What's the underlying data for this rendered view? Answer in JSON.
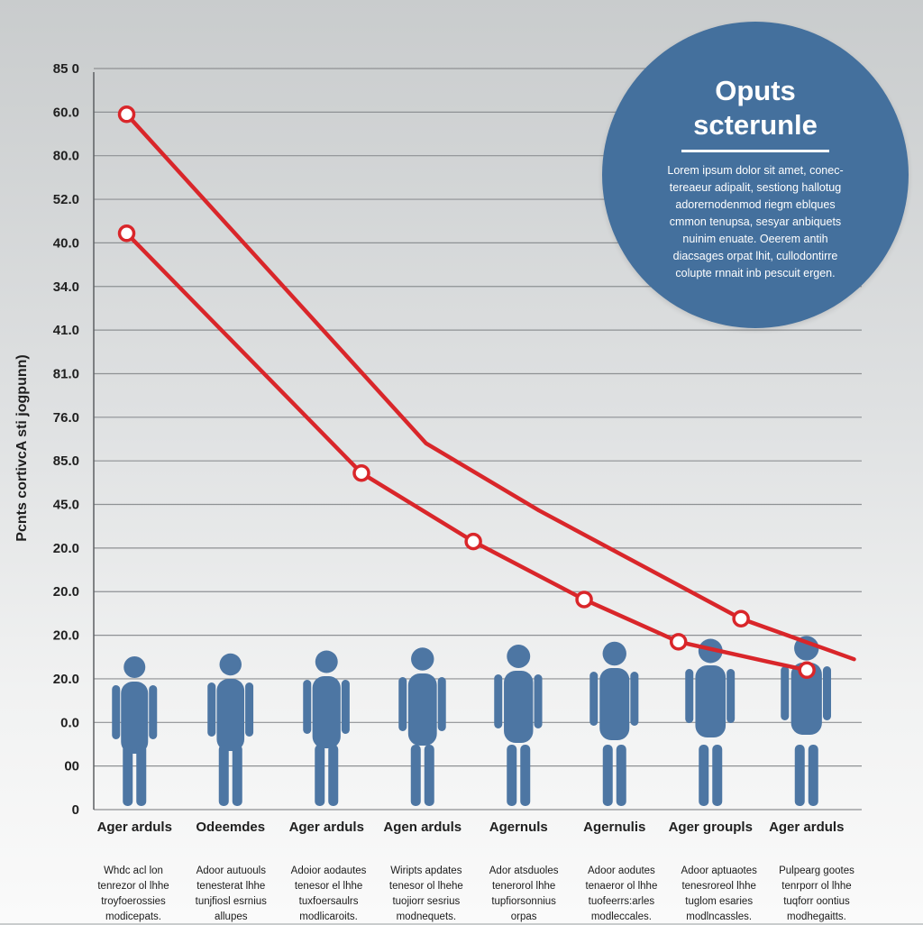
{
  "chart_data": {
    "type": "line",
    "ylabel": "Pcnts cortivcA sti jogpunn)",
    "yticks": [
      "85 0",
      "60.0",
      "80.0",
      "52.0",
      "40.0",
      "34.0",
      "41.0",
      "81.0",
      "76.0",
      "85.0",
      "45.0",
      "20.0",
      "20.0",
      "20.0",
      "20.0",
      "0.0",
      "00",
      "0"
    ],
    "categories": [
      "Ager arduls",
      "Odeemdes",
      "Ager arduls",
      "Agen arduls",
      "Agernuls",
      "Agernulis",
      "Ager groupls",
      "Ager arduls"
    ],
    "x_extent": [
      0,
      7
    ],
    "y_range": [
      0,
      17
    ],
    "grid": true,
    "series": [
      {
        "name": "upper",
        "x": [
          0.3,
          3.03,
          4.06,
          5.9,
          6.93
        ],
        "y": [
          15.95,
          8.4,
          6.86,
          4.38,
          3.45
        ],
        "markers": [
          true,
          false,
          false,
          true,
          false
        ]
      },
      {
        "name": "lower",
        "x": [
          0.3,
          2.44,
          3.46,
          4.47,
          5.33,
          6.13,
          6.5
        ],
        "y": [
          13.22,
          7.72,
          6.15,
          4.82,
          3.85,
          3.4,
          3.2
        ],
        "markers": [
          true,
          true,
          true,
          true,
          true,
          false,
          true
        ]
      }
    ],
    "colors": {
      "line": "#d9262a",
      "figure": "#4d76a3",
      "callout": "#44709d"
    }
  },
  "callout": {
    "title_line1": "Oputs",
    "title_line2": "scterunle",
    "body_lines": [
      "Lorem ipsum dolor sit amet, conec-",
      "tereaeur adipalit, sestiong hallotug",
      "adorernodenmod riegm eblques",
      "cmmon tenupsa, sesyar anbiquets",
      "nuinim enuate. Oeerem antih",
      "diacsages orpat lhit, cullodontirre",
      "colupte rnnait inb pescuit ergen."
    ]
  },
  "footnotes": [
    [
      "Whdc acl lon",
      "tenrezor ol lhhe",
      "troyfoerossies",
      "modicepats."
    ],
    [
      "Adoor autuouls",
      "tenesterat lhhe",
      "tunjfiosl esrnius",
      "allupes"
    ],
    [
      "Adoior aodautes",
      "tenesor el lhhe",
      "tuxfoersaulrs",
      "modlicaroits."
    ],
    [
      "Wiripts apdates",
      "tenesor ol lhehe",
      "tuojiorr sesrius",
      "modnequets."
    ],
    [
      "Ador atsduoles",
      "tenerorol lhhe",
      "tupfiorsonnius",
      "orpas"
    ],
    [
      "Adoor aodutes",
      "tenaeror ol lhhe",
      "tuofeerrs:arles",
      "modleccales."
    ],
    [
      "Adoor aptuaotes",
      "tenesroreol lhhe",
      "tuglom esaries",
      "modlncassles."
    ],
    [
      "Pulpearg gootes",
      "tenrporr ol lhhe",
      "tuqforr oontius",
      "modhegaitts."
    ]
  ]
}
